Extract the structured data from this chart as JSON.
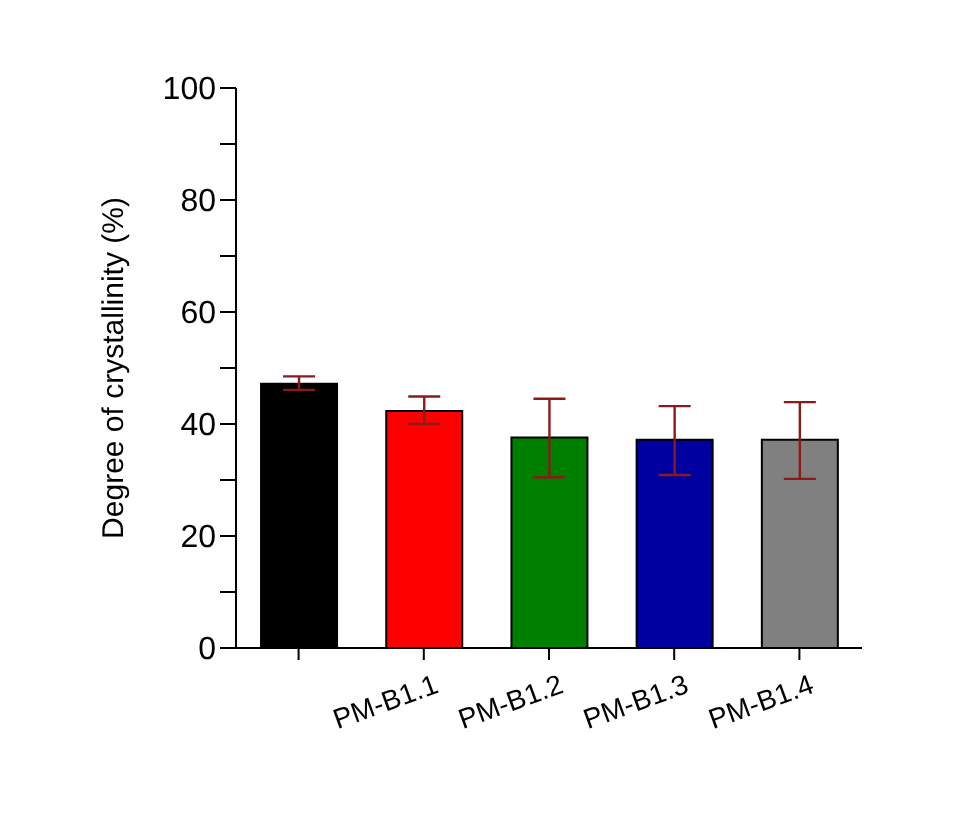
{
  "chart_data": {
    "type": "bar",
    "ylabel": "Degree of crystallinity (%)",
    "categories": [
      null,
      "PM-B1.1",
      "PM-B1.2",
      "PM-B1.3",
      "PM-B1.4"
    ],
    "values": [
      47.2,
      42.3,
      37.6,
      37.2,
      37.2
    ],
    "colors": [
      "#000000",
      "#ff0000",
      "#008000",
      "#0000a0",
      "#808080"
    ],
    "errors": [
      [
        46.1,
        48.5
      ],
      [
        40.0,
        44.9
      ],
      [
        30.5,
        44.5
      ],
      [
        30.9,
        43.2
      ],
      [
        30.2,
        43.9
      ]
    ],
    "ylim": [
      0,
      100
    ],
    "yticks": [
      0,
      {
        "value": 10,
        "label": null
      },
      20,
      {
        "value": 30,
        "label": null
      },
      40,
      {
        "value": 50,
        "label": null
      },
      60,
      {
        "value": 70,
        "label": null
      },
      80,
      {
        "value": 90,
        "label": null
      },
      100
    ],
    "grid": false,
    "legend": false
  }
}
